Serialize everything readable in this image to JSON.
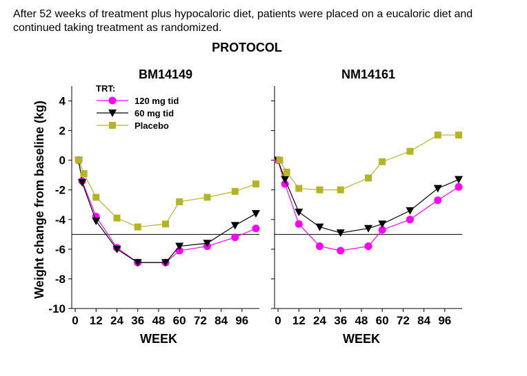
{
  "caption": "After 52 weeks of treatment plus hypocaloric diet, patients were placed on a eucaloric diet and continued taking treatment as randomized.",
  "figure_title": "PROTOCOL",
  "colors": {
    "high_dose": "#ff00ff",
    "low_dose": "#000000",
    "placebo": "#b5b524",
    "axis": "#000000"
  },
  "chart_data": [
    {
      "type": "line",
      "title": "BM14149",
      "xlabel": "WEEK",
      "ylabel": "Weight change from baseline (kg)",
      "xlim": [
        -2,
        106
      ],
      "ylim": [
        -10,
        5
      ],
      "x_ticks": [
        0,
        12,
        24,
        36,
        48,
        60,
        72,
        84,
        96
      ],
      "y_ticks": [
        4,
        2,
        0,
        -2,
        -4,
        -6,
        -8,
        -10
      ],
      "reference_line_y": -5,
      "grid": false,
      "legend": {
        "title": "TRT:",
        "placement": "top-left",
        "entries": [
          "120 mg tid",
          "60 mg tid",
          "Placebo"
        ]
      },
      "series": [
        {
          "name": "120 mg tid",
          "marker": "circle",
          "color": "#ff00ff",
          "x": [
            2,
            4,
            12,
            24,
            36,
            52,
            60,
            76,
            92,
            104
          ],
          "y": [
            0,
            -1.4,
            -3.8,
            -5.9,
            -6.9,
            -6.9,
            -6.1,
            -5.8,
            -5.2,
            -4.6
          ]
        },
        {
          "name": "60 mg tid",
          "marker": "triangle-down",
          "color": "#000000",
          "x": [
            2,
            4,
            12,
            24,
            36,
            52,
            60,
            76,
            92,
            104
          ],
          "y": [
            0,
            -1.5,
            -4.1,
            -6.0,
            -6.9,
            -6.9,
            -5.8,
            -5.6,
            -4.4,
            -3.6
          ]
        },
        {
          "name": "Placebo",
          "marker": "square",
          "color": "#b5b524",
          "x": [
            2,
            5,
            12,
            24,
            36,
            52,
            60,
            76,
            92,
            104
          ],
          "y": [
            0,
            -0.9,
            -2.5,
            -3.9,
            -4.5,
            -4.3,
            -2.8,
            -2.5,
            -2.1,
            -1.6
          ]
        }
      ]
    },
    {
      "type": "line",
      "title": "NM14161",
      "xlabel": "WEEK",
      "ylabel": "",
      "xlim": [
        -2,
        106
      ],
      "ylim": [
        -10,
        5
      ],
      "x_ticks": [
        0,
        12,
        24,
        36,
        48,
        60,
        72,
        84,
        96
      ],
      "y_ticks": [
        4,
        2,
        0,
        -2,
        -4,
        -6,
        -8,
        -10
      ],
      "y_tick_labels_shown": false,
      "reference_line_y": -5,
      "grid": false,
      "series": [
        {
          "name": "120 mg tid",
          "marker": "circle",
          "color": "#ff00ff",
          "x": [
            0,
            4,
            12,
            24,
            36,
            52,
            60,
            76,
            92,
            104
          ],
          "y": [
            0,
            -1.6,
            -4.3,
            -5.8,
            -6.1,
            -5.8,
            -4.7,
            -4.0,
            -2.7,
            -1.8
          ]
        },
        {
          "name": "60 mg tid",
          "marker": "triangle-down",
          "color": "#000000",
          "x": [
            0,
            4,
            12,
            24,
            36,
            52,
            60,
            76,
            92,
            104
          ],
          "y": [
            0,
            -1.3,
            -3.5,
            -4.5,
            -4.9,
            -4.6,
            -4.3,
            -3.4,
            -1.9,
            -1.3
          ]
        },
        {
          "name": "Placebo",
          "marker": "square",
          "color": "#b5b524",
          "x": [
            1,
            5,
            12,
            24,
            36,
            52,
            60,
            76,
            92,
            104
          ],
          "y": [
            0,
            -0.8,
            -1.9,
            -2.0,
            -2.0,
            -1.2,
            -0.1,
            0.6,
            1.7,
            1.7
          ]
        }
      ]
    }
  ]
}
